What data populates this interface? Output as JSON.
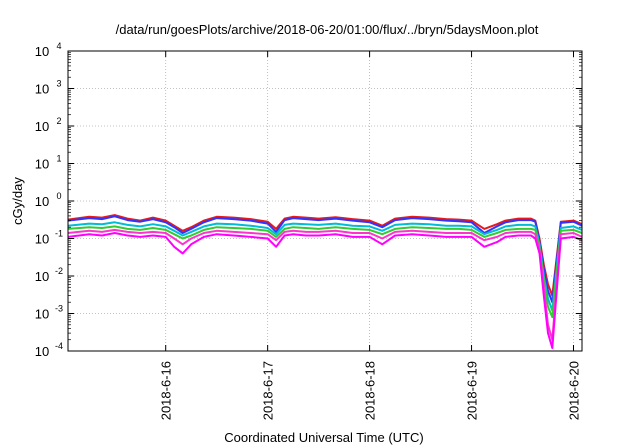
{
  "chart_data": {
    "type": "line",
    "title": "/data/run/goesPlots/archive/2018-06-20/01:00/flux/../bryn/5daysMoon.plot",
    "xlabel": "Coordinated Universal Time (UTC)",
    "ylabel": "cGy/day",
    "yscale": "log",
    "ylim": [
      0.0001,
      10000
    ],
    "xlim": [
      "2018-06-15 01:00",
      "2018-06-20 02:00"
    ],
    "grid": true,
    "legend": "none",
    "y_ticks": [
      {
        "base": "10",
        "exp": "-4"
      },
      {
        "base": "10",
        "exp": "-3"
      },
      {
        "base": "10",
        "exp": "-2"
      },
      {
        "base": "10",
        "exp": "-1"
      },
      {
        "base": "10",
        "exp": "0"
      },
      {
        "base": "10",
        "exp": "1"
      },
      {
        "base": "10",
        "exp": "2"
      },
      {
        "base": "10",
        "exp": "3"
      },
      {
        "base": "10",
        "exp": "4"
      }
    ],
    "x_ticks": [
      {
        "label": "2018-6-16",
        "date": "2018-06-16 00:00"
      },
      {
        "label": "2018-6-17",
        "date": "2018-06-17 00:00"
      },
      {
        "label": "2018-6-18",
        "date": "2018-06-18 00:00"
      },
      {
        "label": "2018-6-19",
        "date": "2018-06-19 00:00"
      },
      {
        "label": "2018-6-20",
        "date": "2018-06-20 00:00"
      }
    ],
    "x": [
      "2018-06-15 01:00",
      "2018-06-15 06:00",
      "2018-06-15 09:00",
      "2018-06-15 12:00",
      "2018-06-15 15:00",
      "2018-06-15 18:00",
      "2018-06-15 21:00",
      "2018-06-16 00:00",
      "2018-06-16 02:00",
      "2018-06-16 04:00",
      "2018-06-16 06:00",
      "2018-06-16 09:00",
      "2018-06-16 12:00",
      "2018-06-16 16:00",
      "2018-06-16 20:00",
      "2018-06-17 00:00",
      "2018-06-17 02:00",
      "2018-06-17 04:00",
      "2018-06-17 06:00",
      "2018-06-17 09:00",
      "2018-06-17 12:00",
      "2018-06-17 16:00",
      "2018-06-17 20:00",
      "2018-06-18 00:00",
      "2018-06-18 03:00",
      "2018-06-18 06:00",
      "2018-06-18 10:00",
      "2018-06-18 14:00",
      "2018-06-18 18:00",
      "2018-06-18 21:00",
      "2018-06-19 00:00",
      "2018-06-19 03:00",
      "2018-06-19 06:00",
      "2018-06-19 08:00",
      "2018-06-19 11:00",
      "2018-06-19 14:00",
      "2018-06-19 15:00",
      "2018-06-19 16:00",
      "2018-06-19 17:00",
      "2018-06-19 18:00",
      "2018-06-19 19:00",
      "2018-06-19 21:00",
      "2018-06-20 00:00",
      "2018-06-20 02:00"
    ],
    "series": [
      {
        "color": "#e41a1c",
        "values": [
          0.32,
          0.38,
          0.36,
          0.42,
          0.34,
          0.3,
          0.36,
          0.3,
          0.22,
          0.16,
          0.2,
          0.3,
          0.38,
          0.36,
          0.33,
          0.28,
          0.18,
          0.34,
          0.38,
          0.36,
          0.34,
          0.37,
          0.33,
          0.3,
          0.22,
          0.34,
          0.38,
          0.36,
          0.33,
          0.32,
          0.3,
          0.18,
          0.24,
          0.3,
          0.34,
          0.34,
          0.3,
          0.1,
          0.02,
          0.006,
          0.003,
          0.28,
          0.3,
          0.24
        ]
      },
      {
        "color": "#3333ff",
        "values": [
          0.3,
          0.35,
          0.33,
          0.39,
          0.31,
          0.28,
          0.33,
          0.27,
          0.2,
          0.14,
          0.18,
          0.27,
          0.35,
          0.33,
          0.3,
          0.25,
          0.15,
          0.31,
          0.35,
          0.33,
          0.31,
          0.34,
          0.3,
          0.27,
          0.2,
          0.31,
          0.35,
          0.33,
          0.3,
          0.29,
          0.27,
          0.14,
          0.21,
          0.27,
          0.31,
          0.31,
          0.28,
          0.08,
          0.015,
          0.004,
          0.002,
          0.26,
          0.28,
          0.22
        ]
      },
      {
        "color": "#00bcd4",
        "values": [
          0.22,
          0.25,
          0.24,
          0.27,
          0.23,
          0.21,
          0.24,
          0.21,
          0.16,
          0.12,
          0.15,
          0.21,
          0.25,
          0.24,
          0.22,
          0.19,
          0.13,
          0.23,
          0.25,
          0.24,
          0.23,
          0.25,
          0.22,
          0.21,
          0.16,
          0.23,
          0.25,
          0.24,
          0.22,
          0.22,
          0.21,
          0.13,
          0.17,
          0.21,
          0.23,
          0.23,
          0.21,
          0.07,
          0.01,
          0.0025,
          0.0012,
          0.19,
          0.21,
          0.17
        ]
      },
      {
        "color": "#33cc33",
        "values": [
          0.18,
          0.2,
          0.19,
          0.21,
          0.18,
          0.17,
          0.19,
          0.17,
          0.13,
          0.1,
          0.12,
          0.17,
          0.2,
          0.19,
          0.18,
          0.16,
          0.11,
          0.18,
          0.2,
          0.19,
          0.18,
          0.2,
          0.18,
          0.17,
          0.13,
          0.18,
          0.2,
          0.19,
          0.18,
          0.18,
          0.17,
          0.11,
          0.14,
          0.17,
          0.18,
          0.18,
          0.17,
          0.06,
          0.008,
          0.0015,
          0.0008,
          0.16,
          0.17,
          0.14
        ]
      },
      {
        "color": "#ff33cc",
        "values": [
          0.14,
          0.16,
          0.15,
          0.17,
          0.15,
          0.14,
          0.15,
          0.14,
          0.1,
          0.07,
          0.1,
          0.14,
          0.16,
          0.15,
          0.14,
          0.13,
          0.09,
          0.15,
          0.16,
          0.15,
          0.15,
          0.16,
          0.14,
          0.14,
          0.1,
          0.15,
          0.16,
          0.15,
          0.14,
          0.14,
          0.14,
          0.09,
          0.11,
          0.14,
          0.15,
          0.15,
          0.13,
          0.05,
          0.005,
          0.0005,
          0.0002,
          0.13,
          0.14,
          0.11
        ]
      },
      {
        "color": "#ff00ff",
        "values": [
          0.11,
          0.13,
          0.12,
          0.14,
          0.12,
          0.11,
          0.12,
          0.11,
          0.06,
          0.04,
          0.07,
          0.11,
          0.13,
          0.12,
          0.11,
          0.1,
          0.06,
          0.12,
          0.13,
          0.12,
          0.12,
          0.13,
          0.11,
          0.11,
          0.07,
          0.12,
          0.13,
          0.12,
          0.11,
          0.11,
          0.11,
          0.06,
          0.08,
          0.11,
          0.12,
          0.12,
          0.1,
          0.04,
          0.003,
          0.0003,
          0.00012,
          0.1,
          0.11,
          0.09
        ]
      }
    ]
  }
}
